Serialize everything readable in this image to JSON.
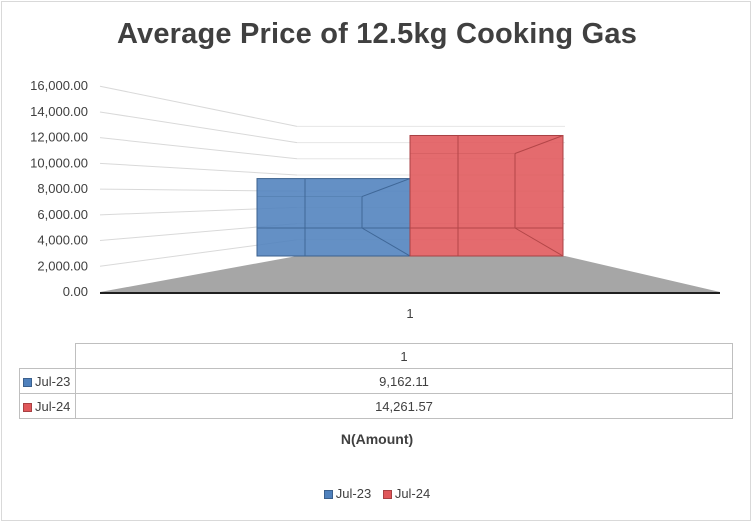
{
  "chart_data": {
    "type": "bar",
    "title": "Average Price of 12.5kg Cooking Gas",
    "categories": [
      "1"
    ],
    "series": [
      {
        "name": "Jul-23",
        "values": [
          9162.11
        ],
        "display": "9,162.11",
        "color": "#4f81bd"
      },
      {
        "name": "Jul-24",
        "values": [
          14261.57
        ],
        "display": "14,261.57",
        "color": "#e0575a"
      }
    ],
    "ylim": [
      0,
      16000
    ],
    "yticks": [
      "0.00",
      "2,000.00",
      "4,000.00",
      "6,000.00",
      "8,000.00",
      "10,000.00",
      "12,000.00",
      "14,000.00",
      "16,000.00"
    ],
    "xlabel": "N(Amount)",
    "ylabel": "",
    "data_table": true,
    "legend_position": "bottom",
    "grid": true
  }
}
